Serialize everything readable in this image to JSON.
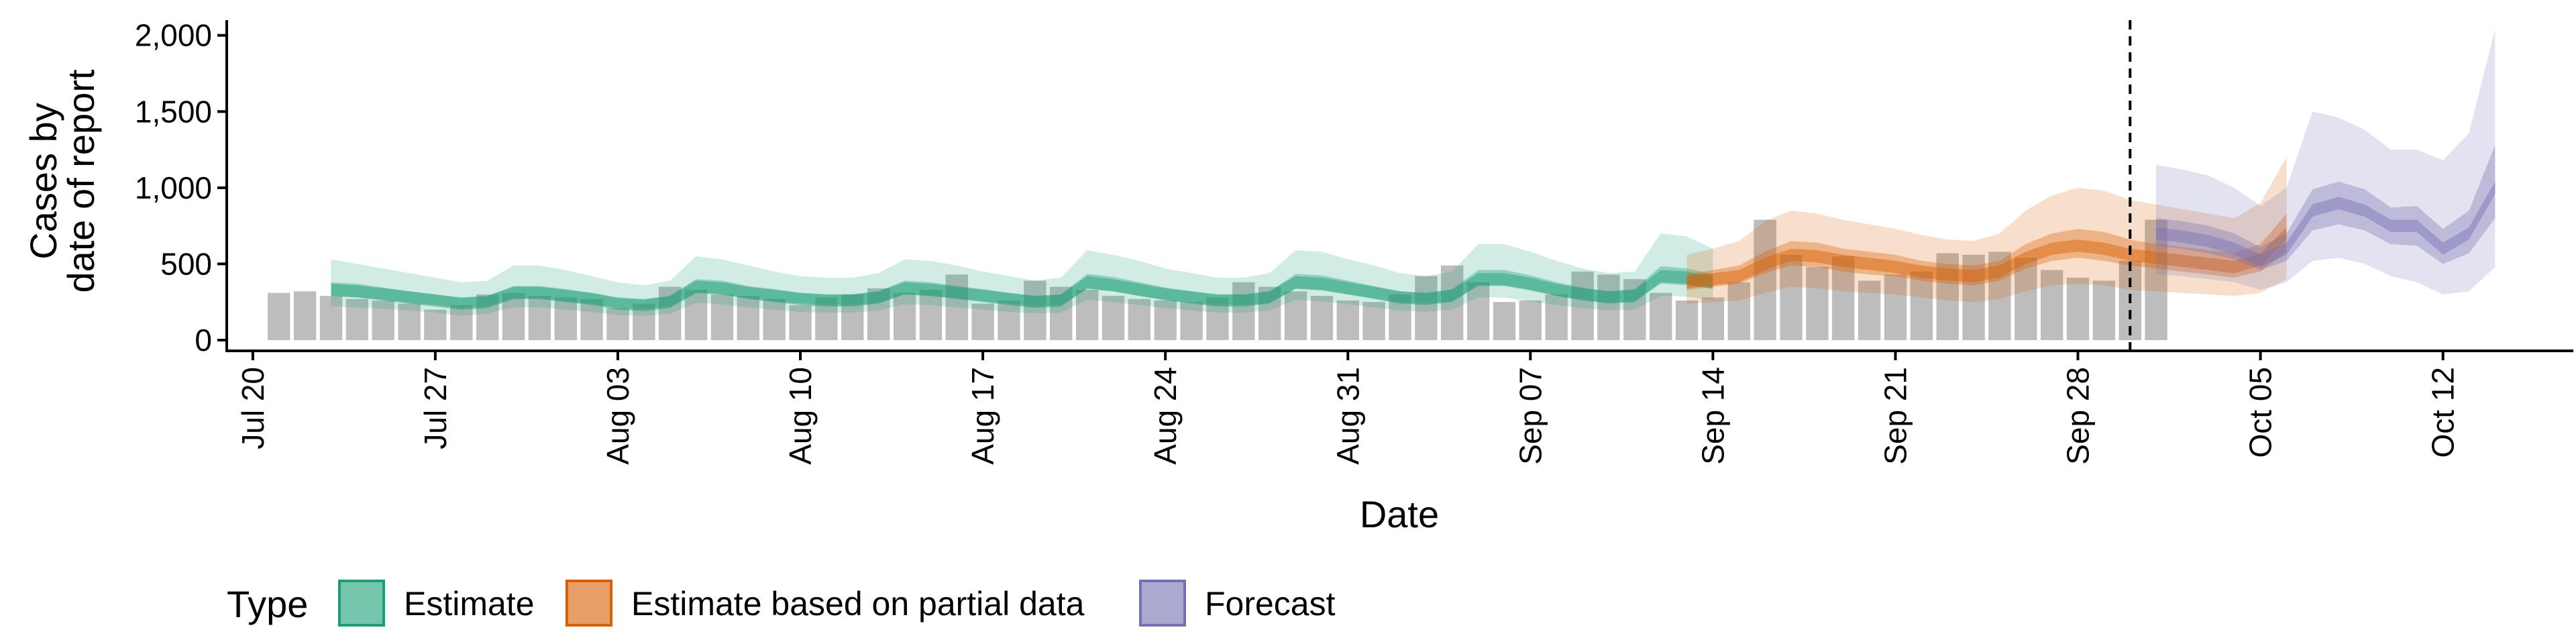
{
  "chart_data": {
    "type": "area",
    "xlabel": "Date",
    "ylabel_lines": [
      "Cases by",
      "date of report"
    ],
    "ylim": [
      0,
      2100
    ],
    "y_ticks": [
      0,
      500,
      1000,
      1500,
      2000
    ],
    "y_tick_labels": [
      "0",
      "500",
      "1,000",
      "1,500",
      "2,000"
    ],
    "x_start": "2020-07-19",
    "x_end": "2020-10-17",
    "x_ticks": [
      "2020-07-20",
      "2020-07-27",
      "2020-08-03",
      "2020-08-10",
      "2020-08-17",
      "2020-08-24",
      "2020-08-31",
      "2020-09-07",
      "2020-09-14",
      "2020-09-21",
      "2020-09-28",
      "2020-10-05",
      "2020-10-12"
    ],
    "x_tick_labels": [
      "Jul 20",
      "Jul 27",
      "Aug 03",
      "Aug 10",
      "Aug 17",
      "Aug 24",
      "Aug 31",
      "Sep 07",
      "Sep 14",
      "Sep 21",
      "Sep 28",
      "Oct 05",
      "Oct 12"
    ],
    "reference_line_date": "2020-09-30",
    "reported_cases": {
      "start_date": "2020-07-21",
      "color": "#bdbdbd",
      "values": [
        310,
        320,
        290,
        270,
        260,
        240,
        200,
        230,
        300,
        310,
        290,
        280,
        270,
        210,
        240,
        350,
        330,
        300,
        290,
        270,
        230,
        280,
        300,
        340,
        310,
        330,
        430,
        240,
        260,
        390,
        350,
        330,
        290,
        270,
        260,
        250,
        280,
        380,
        350,
        320,
        290,
        260,
        250,
        300,
        420,
        490,
        380,
        250,
        260,
        300,
        450,
        430,
        400,
        310,
        260,
        280,
        380,
        790,
        560,
        480,
        550,
        390,
        430,
        450,
        570,
        560,
        580,
        540,
        460,
        410,
        390,
        520,
        790
      ]
    },
    "legend": {
      "title": "Type",
      "items": [
        "Estimate",
        "Estimate based on partial data",
        "Forecast"
      ]
    },
    "colors": {
      "Estimate": "#1b9e77",
      "Estimate based on partial data": "#d95f02",
      "Forecast": "#7570b3"
    },
    "series": [
      {
        "name": "Estimate",
        "start_date": "2020-07-23",
        "median": [
          330,
          320,
          300,
          280,
          260,
          240,
          250,
          310,
          310,
          290,
          270,
          240,
          230,
          250,
          350,
          340,
          310,
          290,
          270,
          260,
          260,
          280,
          340,
          330,
          310,
          290,
          270,
          250,
          260,
          380,
          360,
          330,
          300,
          280,
          260,
          260,
          280,
          380,
          370,
          340,
          310,
          280,
          270,
          290,
          400,
          400,
          370,
          330,
          300,
          280,
          290,
          420,
          410,
          380
        ],
        "lower90": [
          220,
          215,
          205,
          195,
          180,
          160,
          175,
          215,
          215,
          200,
          185,
          165,
          160,
          175,
          245,
          235,
          215,
          200,
          185,
          180,
          180,
          195,
          235,
          230,
          215,
          200,
          185,
          175,
          180,
          265,
          250,
          230,
          210,
          195,
          180,
          180,
          195,
          265,
          255,
          235,
          215,
          195,
          185,
          200,
          280,
          280,
          255,
          230,
          210,
          195,
          200,
          290,
          285,
          265
        ],
        "upper90": [
          530,
          500,
          470,
          440,
          410,
          380,
          390,
          490,
          490,
          460,
          420,
          380,
          360,
          390,
          550,
          530,
          490,
          450,
          420,
          410,
          410,
          440,
          530,
          520,
          490,
          450,
          420,
          390,
          410,
          590,
          560,
          520,
          470,
          440,
          410,
          410,
          440,
          590,
          580,
          530,
          490,
          440,
          420,
          450,
          630,
          630,
          580,
          520,
          470,
          440,
          450,
          700,
          680,
          600
        ],
        "lower50": [
          290,
          280,
          265,
          245,
          230,
          210,
          220,
          275,
          275,
          255,
          240,
          210,
          205,
          220,
          310,
          300,
          275,
          255,
          240,
          230,
          230,
          245,
          300,
          290,
          275,
          255,
          240,
          220,
          230,
          335,
          320,
          290,
          265,
          245,
          230,
          230,
          245,
          335,
          325,
          300,
          275,
          245,
          240,
          255,
          355,
          355,
          325,
          290,
          265,
          245,
          255,
          370,
          360,
          335
        ],
        "upper50": [
          380,
          370,
          345,
          320,
          300,
          275,
          290,
          355,
          355,
          335,
          310,
          275,
          265,
          290,
          400,
          390,
          355,
          335,
          310,
          300,
          300,
          320,
          390,
          380,
          355,
          335,
          310,
          290,
          300,
          435,
          415,
          380,
          345,
          320,
          300,
          300,
          320,
          435,
          425,
          390,
          355,
          320,
          310,
          335,
          460,
          460,
          425,
          380,
          345,
          320,
          335,
          485,
          470,
          435
        ]
      },
      {
        "name": "Estimate based on partial data",
        "start_date": "2020-09-13",
        "median": [
          380,
          400,
          420,
          500,
          560,
          550,
          520,
          500,
          480,
          450,
          430,
          420,
          450,
          540,
          600,
          620,
          600,
          560,
          540,
          520,
          500,
          480,
          530,
          700
        ],
        "lower90": [
          240,
          250,
          260,
          310,
          350,
          340,
          320,
          310,
          300,
          280,
          260,
          250,
          270,
          320,
          360,
          370,
          360,
          330,
          320,
          310,
          300,
          290,
          310,
          400
        ],
        "upper90": [
          560,
          600,
          650,
          780,
          850,
          830,
          790,
          760,
          730,
          690,
          660,
          650,
          700,
          850,
          950,
          1000,
          980,
          920,
          890,
          860,
          830,
          800,
          900,
          1200
        ],
        "lower50": [
          330,
          350,
          370,
          440,
          490,
          480,
          450,
          430,
          420,
          390,
          370,
          360,
          390,
          470,
          520,
          540,
          520,
          490,
          470,
          450,
          430,
          410,
          450,
          580
        ],
        "upper50": [
          430,
          460,
          490,
          580,
          650,
          640,
          600,
          580,
          560,
          520,
          500,
          490,
          520,
          630,
          700,
          730,
          710,
          660,
          630,
          610,
          590,
          570,
          630,
          830
        ]
      },
      {
        "name": "Forecast",
        "start_date": "2020-10-01",
        "median": [
          700,
          680,
          650,
          600,
          520,
          600,
          850,
          900,
          850,
          750,
          750,
          600,
          700,
          1000
        ],
        "lower90": [
          430,
          420,
          400,
          380,
          330,
          380,
          520,
          540,
          500,
          420,
          380,
          300,
          320,
          480
        ],
        "upper90": [
          1150,
          1120,
          1080,
          1000,
          880,
          1000,
          1500,
          1460,
          1380,
          1250,
          1250,
          1180,
          1360,
          2040
        ],
        "lower50": [
          620,
          600,
          570,
          530,
          460,
          520,
          720,
          760,
          720,
          630,
          620,
          500,
          570,
          800
        ],
        "upper50": [
          800,
          780,
          750,
          700,
          610,
          700,
          990,
          1040,
          990,
          870,
          880,
          730,
          850,
          1280
        ]
      }
    ]
  }
}
